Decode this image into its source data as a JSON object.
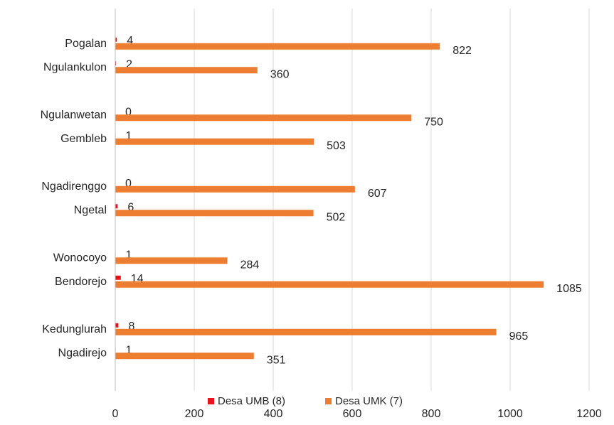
{
  "chart_data": {
    "type": "barh",
    "categories": [
      "Pogalan",
      "Ngulankulon",
      null,
      "Ngulanwetan",
      "Gembleb",
      null,
      "Ngadirenggo",
      "Ngetal",
      null,
      "Wonocoyo",
      "Bendorejo",
      null,
      "Kedunglurah",
      "Ngadirejo"
    ],
    "series": [
      {
        "name": "Desa UMB (8)",
        "color": "#e8141d",
        "values": [
          4,
          2,
          null,
          0,
          1,
          null,
          0,
          6,
          null,
          1,
          14,
          null,
          8,
          1
        ]
      },
      {
        "name": "Desa UMK (7)",
        "color": "#ed7d31",
        "values": [
          822,
          360,
          null,
          750,
          503,
          null,
          607,
          502,
          null,
          284,
          1085,
          null,
          965,
          351
        ]
      }
    ],
    "xlim": [
      0,
      1200
    ],
    "xticks": [
      0,
      200,
      400,
      600,
      800,
      1000,
      1200
    ],
    "grid": true,
    "legend": "bottom"
  }
}
